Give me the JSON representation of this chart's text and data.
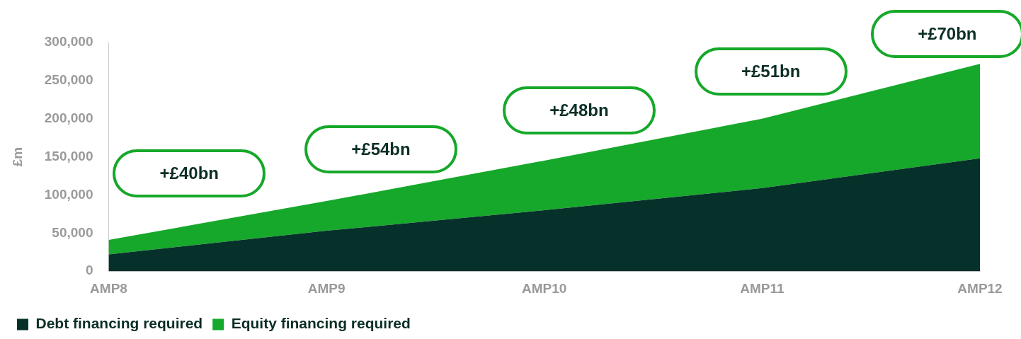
{
  "chart_data": {
    "type": "area",
    "stacked": true,
    "ylabel": "£m",
    "categories": [
      "AMP8",
      "AMP9",
      "AMP10",
      "AMP11",
      "AMP12"
    ],
    "series": [
      {
        "name": "Debt financing required",
        "color": "#05312a",
        "values": [
          22000,
          53000,
          80000,
          109000,
          148000
        ]
      },
      {
        "name": "Equity financing required",
        "color": "#16a82a",
        "values": [
          19000,
          39000,
          65000,
          91000,
          124000
        ]
      }
    ],
    "ylim": [
      0,
      300000
    ],
    "yticks": [
      0,
      {
        "value": 50000,
        "label": "50,000"
      },
      {
        "value": 100000,
        "label": "100,000"
      },
      {
        "value": 150000,
        "label": "150,000"
      },
      {
        "value": 200000,
        "label": "200,000"
      },
      {
        "value": 250000,
        "label": "250,000"
      },
      {
        "value": 300000,
        "label": "300,000"
      }
    ],
    "grid": false,
    "legend": "bottom left",
    "annotations": [
      "+£40bn",
      "+£54bn",
      "+£48bn",
      "+£51bn",
      "+£70bn"
    ]
  }
}
